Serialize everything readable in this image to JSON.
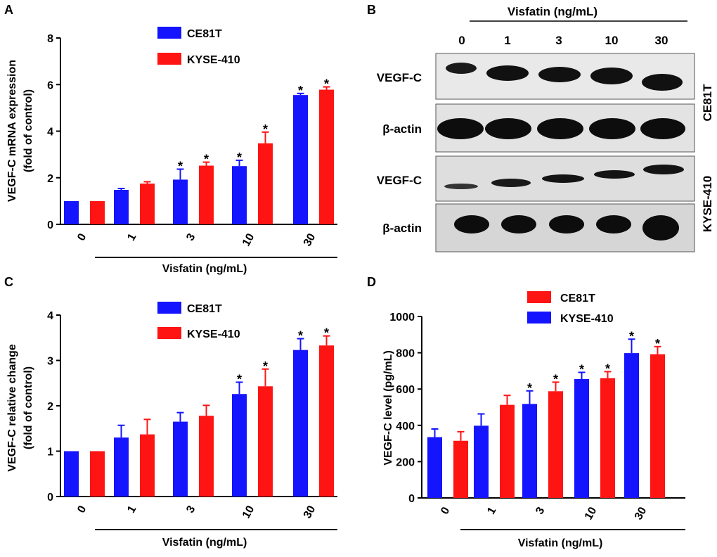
{
  "panels": {
    "A": {
      "letter": "A"
    },
    "B": {
      "letter": "B"
    },
    "C": {
      "letter": "C"
    },
    "D": {
      "letter": "D"
    }
  },
  "colors": {
    "blue": "#1414ff",
    "red": "#ff1414",
    "axis": "#000000"
  },
  "significance_marker": "*",
  "chart_data": [
    {
      "id": "A",
      "type": "bar",
      "ylabel_line1": "VEGF-C mRNA expression",
      "ylabel_line2": "(fold of control)",
      "xlabel": "Visfatin (ng/mL)",
      "categories": [
        "0",
        "1",
        "3",
        "10",
        "30"
      ],
      "ylim": [
        0,
        8
      ],
      "yticks": [
        "0",
        "2",
        "4",
        "6",
        "8"
      ],
      "legend": [
        "CE81T",
        "KYSE-410"
      ],
      "series": [
        {
          "name": "CE81T",
          "color": "blue",
          "values": [
            1.0,
            1.48,
            1.92,
            2.5,
            5.55
          ],
          "errors": [
            0,
            0.06,
            0.45,
            0.25,
            0.07
          ],
          "sig": [
            false,
            false,
            true,
            true,
            true
          ]
        },
        {
          "name": "KYSE-410",
          "color": "red",
          "values": [
            1.0,
            1.75,
            2.52,
            3.48,
            5.78
          ],
          "errors": [
            0,
            0.08,
            0.15,
            0.48,
            0.12
          ],
          "sig": [
            false,
            false,
            true,
            true,
            true
          ]
        }
      ]
    },
    {
      "id": "C",
      "type": "bar",
      "ylabel_line1": "VEGF-C relative change",
      "ylabel_line2": "(fold of control)",
      "xlabel": "Visfatin (ng/mL)",
      "categories": [
        "0",
        "1",
        "3",
        "10",
        "30"
      ],
      "ylim": [
        0,
        4
      ],
      "yticks": [
        "0",
        "1",
        "2",
        "3",
        "4"
      ],
      "legend": [
        "CE81T",
        "KYSE-410"
      ],
      "series": [
        {
          "name": "CE81T",
          "color": "blue",
          "values": [
            1.0,
            1.3,
            1.65,
            2.26,
            3.23
          ],
          "errors": [
            0,
            0.27,
            0.2,
            0.26,
            0.25
          ],
          "sig": [
            false,
            false,
            false,
            true,
            true
          ]
        },
        {
          "name": "KYSE-410",
          "color": "red",
          "values": [
            1.0,
            1.37,
            1.78,
            2.43,
            3.33
          ],
          "errors": [
            0,
            0.33,
            0.23,
            0.38,
            0.21
          ],
          "sig": [
            false,
            false,
            false,
            true,
            true
          ]
        }
      ]
    },
    {
      "id": "D",
      "type": "bar",
      "ylabel_line1": "VEGF-C level (pg/mL)",
      "ylabel_line2": "",
      "xlabel": "Visfatin (ng/mL)",
      "categories": [
        "0",
        "1",
        "3",
        "10",
        "30"
      ],
      "ylim": [
        0,
        1000
      ],
      "yticks": [
        "0",
        "200",
        "400",
        "600",
        "800",
        "1000"
      ],
      "legend": [
        "CE81T",
        "KYSE-410"
      ],
      "legend_colors": [
        "red",
        "blue"
      ],
      "series": [
        {
          "name": "bar-left",
          "color": "blue",
          "values": [
            335,
            398,
            518,
            655,
            798
          ],
          "errors": [
            45,
            65,
            72,
            37,
            77
          ],
          "sig": [
            false,
            false,
            true,
            true,
            true
          ]
        },
        {
          "name": "bar-right",
          "color": "red",
          "values": [
            315,
            513,
            588,
            660,
            792
          ],
          "errors": [
            50,
            52,
            50,
            36,
            42
          ],
          "sig": [
            false,
            false,
            true,
            true,
            true
          ]
        }
      ]
    }
  ],
  "blot": {
    "title": "Visfatin (ng/mL)",
    "doses": [
      "0",
      "1",
      "3",
      "10",
      "30"
    ],
    "rows": [
      {
        "label": "VEGF-C"
      },
      {
        "label": "β-actin"
      },
      {
        "label": "VEGF-C"
      },
      {
        "label": "β-actin"
      }
    ],
    "cell_lines": [
      "CE81T",
      "KYSE-410"
    ]
  }
}
